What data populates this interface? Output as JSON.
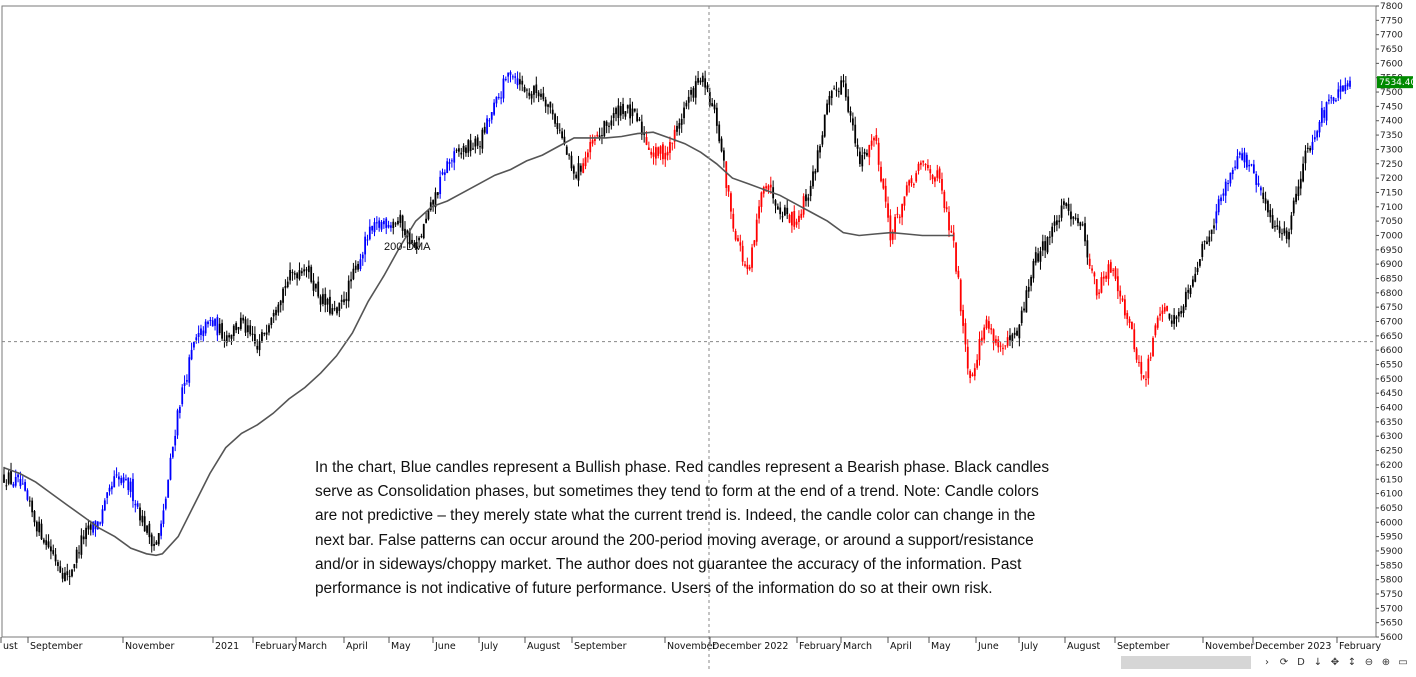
{
  "chart_data": {
    "type": "candlestick",
    "title": "",
    "xlabel": "",
    "ylabel": "",
    "ylim": [
      5600,
      7800
    ],
    "y_ticks": [
      5600,
      5650,
      5700,
      5750,
      5800,
      5850,
      5900,
      5950,
      6000,
      6050,
      6100,
      6150,
      6200,
      6250,
      6300,
      6350,
      6400,
      6450,
      6500,
      6550,
      6600,
      6650,
      6700,
      6750,
      6800,
      6850,
      6900,
      6950,
      7000,
      7050,
      7100,
      7150,
      7200,
      7250,
      7300,
      7350,
      7400,
      7450,
      7500,
      7550,
      7600,
      7650,
      7700,
      7750,
      7800
    ],
    "x_tick_labels": [
      "ust",
      "September",
      "November",
      "2021",
      "February",
      "March",
      "April",
      "May",
      "June",
      "July",
      "August",
      "September",
      "November",
      "December 2022",
      "February",
      "March",
      "April",
      "May",
      "June",
      "July",
      "August",
      "September",
      "November",
      "December 2023",
      "February"
    ],
    "last_price": "7534.40",
    "crosshair_price": 6630,
    "grid": false,
    "colors": {
      "bullish": "#0000ff",
      "bearish": "#ff0000",
      "consolidation": "#000000",
      "dma": "#555555",
      "last_price_bg": "#008a00"
    },
    "series": [
      {
        "name": "200-DMA",
        "values": [
          [
            0,
            6190
          ],
          [
            1,
            6170
          ],
          [
            2,
            6140
          ],
          [
            3,
            6100
          ],
          [
            4,
            6060
          ],
          [
            5,
            6020
          ],
          [
            6,
            5980
          ],
          [
            7,
            5950
          ],
          [
            8,
            5910
          ],
          [
            9,
            5890
          ],
          [
            9.6,
            5885
          ],
          [
            10,
            5890
          ],
          [
            11,
            5950
          ],
          [
            12,
            6060
          ],
          [
            13,
            6170
          ],
          [
            14,
            6260
          ],
          [
            15,
            6310
          ],
          [
            16,
            6340
          ],
          [
            17,
            6380
          ],
          [
            18,
            6430
          ],
          [
            19,
            6470
          ],
          [
            20,
            6520
          ],
          [
            21,
            6580
          ],
          [
            22,
            6660
          ],
          [
            23,
            6770
          ],
          [
            24,
            6860
          ],
          [
            25,
            6960
          ],
          [
            26,
            7050
          ],
          [
            27,
            7100
          ],
          [
            28,
            7120
          ],
          [
            29,
            7150
          ],
          [
            30,
            7180
          ],
          [
            31,
            7210
          ],
          [
            32,
            7230
          ],
          [
            33,
            7260
          ],
          [
            34,
            7280
          ],
          [
            35,
            7310
          ],
          [
            36,
            7340
          ],
          [
            37,
            7340
          ],
          [
            38,
            7340
          ],
          [
            39,
            7345
          ],
          [
            40,
            7355
          ],
          [
            41,
            7360
          ],
          [
            42,
            7340
          ],
          [
            43,
            7320
          ],
          [
            44,
            7290
          ],
          [
            45,
            7250
          ],
          [
            46,
            7200
          ],
          [
            47,
            7180
          ],
          [
            48,
            7160
          ],
          [
            49,
            7140
          ],
          [
            50,
            7110
          ],
          [
            51,
            7080
          ],
          [
            52,
            7050
          ],
          [
            53,
            7010
          ],
          [
            54,
            7000
          ],
          [
            55,
            7005
          ],
          [
            56,
            7010
          ],
          [
            57,
            7005
          ],
          [
            58,
            7000
          ],
          [
            59,
            7000
          ],
          [
            60,
            7000
          ]
        ]
      },
      {
        "name": "Price",
        "values": [
          [
            0,
            6160,
            "k"
          ],
          [
            1,
            6130,
            "b"
          ],
          [
            2,
            6000,
            "k"
          ],
          [
            3,
            5900,
            "k"
          ],
          [
            4,
            5800,
            "k"
          ],
          [
            5,
            5950,
            "k"
          ],
          [
            6,
            6000,
            "b"
          ],
          [
            7,
            6150,
            "b"
          ],
          [
            8,
            6120,
            "b"
          ],
          [
            9,
            5970,
            "k"
          ],
          [
            9.6,
            5920,
            "k"
          ],
          [
            10,
            6000,
            "b"
          ],
          [
            11,
            6400,
            "b"
          ],
          [
            12,
            6620,
            "b"
          ],
          [
            13,
            6700,
            "b"
          ],
          [
            14,
            6650,
            "k"
          ],
          [
            15,
            6700,
            "k"
          ],
          [
            16,
            6600,
            "k"
          ],
          [
            17,
            6750,
            "k"
          ],
          [
            18,
            6850,
            "k"
          ],
          [
            19,
            6900,
            "k"
          ],
          [
            20,
            6780,
            "k"
          ],
          [
            21,
            6720,
            "k"
          ],
          [
            22,
            6850,
            "k"
          ],
          [
            23,
            7000,
            "b"
          ],
          [
            24,
            7050,
            "b"
          ],
          [
            25,
            7050,
            "k"
          ],
          [
            26,
            6950,
            "k"
          ],
          [
            27,
            7100,
            "k"
          ],
          [
            28,
            7250,
            "b"
          ],
          [
            29,
            7300,
            "k"
          ],
          [
            30,
            7320,
            "k"
          ],
          [
            31,
            7450,
            "b"
          ],
          [
            32,
            7580,
            "b"
          ],
          [
            33,
            7500,
            "k"
          ],
          [
            34,
            7500,
            "k"
          ],
          [
            35,
            7380,
            "k"
          ],
          [
            36,
            7200,
            "k"
          ],
          [
            37,
            7300,
            "r"
          ],
          [
            38,
            7380,
            "k"
          ],
          [
            39,
            7450,
            "k"
          ],
          [
            40,
            7400,
            "k"
          ],
          [
            41,
            7280,
            "r"
          ],
          [
            42,
            7300,
            "r"
          ],
          [
            43,
            7450,
            "k"
          ],
          [
            44,
            7550,
            "k"
          ],
          [
            45,
            7400,
            "k"
          ],
          [
            46,
            7050,
            "r"
          ],
          [
            47,
            6850,
            "r"
          ],
          [
            48,
            7200,
            "r"
          ],
          [
            49,
            7100,
            "k"
          ],
          [
            50,
            7050,
            "r"
          ],
          [
            51,
            7180,
            "k"
          ],
          [
            52,
            7450,
            "k"
          ],
          [
            53,
            7550,
            "k"
          ],
          [
            54,
            7250,
            "k"
          ],
          [
            55,
            7350,
            "r"
          ],
          [
            56,
            7000,
            "r"
          ],
          [
            57,
            7150,
            "r"
          ],
          [
            58,
            7250,
            "r"
          ],
          [
            59,
            7200,
            "r"
          ],
          [
            60,
            6950,
            "r"
          ],
          [
            61,
            6500,
            "r"
          ],
          [
            62,
            6700,
            "r"
          ],
          [
            63,
            6600,
            "r"
          ],
          [
            64,
            6650,
            "k"
          ],
          [
            65,
            6900,
            "k"
          ],
          [
            66,
            7000,
            "k"
          ],
          [
            67,
            7100,
            "k"
          ],
          [
            68,
            7050,
            "k"
          ],
          [
            69,
            6800,
            "r"
          ],
          [
            70,
            6900,
            "r"
          ],
          [
            71,
            6700,
            "r"
          ],
          [
            72,
            6480,
            "r"
          ],
          [
            73,
            6750,
            "r"
          ],
          [
            74,
            6700,
            "k"
          ],
          [
            75,
            6850,
            "k"
          ],
          [
            76,
            7000,
            "k"
          ],
          [
            77,
            7150,
            "b"
          ],
          [
            78,
            7300,
            "b"
          ],
          [
            79,
            7200,
            "b"
          ],
          [
            80,
            7050,
            "k"
          ],
          [
            81,
            7000,
            "k"
          ],
          [
            82,
            7250,
            "k"
          ],
          [
            83,
            7400,
            "b"
          ],
          [
            84,
            7480,
            "b"
          ],
          [
            85,
            7520,
            "b"
          ]
        ]
      }
    ],
    "annotations": [
      {
        "text": "200-DMA",
        "x": 24,
        "y": 6950
      }
    ]
  },
  "note": "In the chart, Blue candles represent a Bullish phase. Red candles represent a Bearish phase. Black candles serve as Consolidation phases, but sometimes they tend to form at the end of a trend. Note: Candle colors are not predictive – they merely state what the current trend is. Indeed, the candle color can change in the next bar. False patterns can occur around the 200-period moving average, or around a support/resistance and/or in sideways/choppy market. The author does not guarantee the accuracy of the information. Past performance is not indicative of future performance. Users of the information do so at their own risk.",
  "toolbar": {
    "buttons": [
      {
        "name": "scroll-right-icon",
        "glyph": "›"
      },
      {
        "name": "auto-scroll-icon",
        "glyph": "⟳"
      },
      {
        "name": "d-button",
        "glyph": "D"
      },
      {
        "name": "scale-down-icon",
        "glyph": "↓"
      },
      {
        "name": "crosshair-icon",
        "glyph": "✥"
      },
      {
        "name": "arrows-icon",
        "glyph": "↕"
      },
      {
        "name": "zoom-out-icon",
        "glyph": "⊖"
      },
      {
        "name": "zoom-in-icon",
        "glyph": "⊕"
      },
      {
        "name": "window-icon",
        "glyph": "▭"
      }
    ]
  }
}
